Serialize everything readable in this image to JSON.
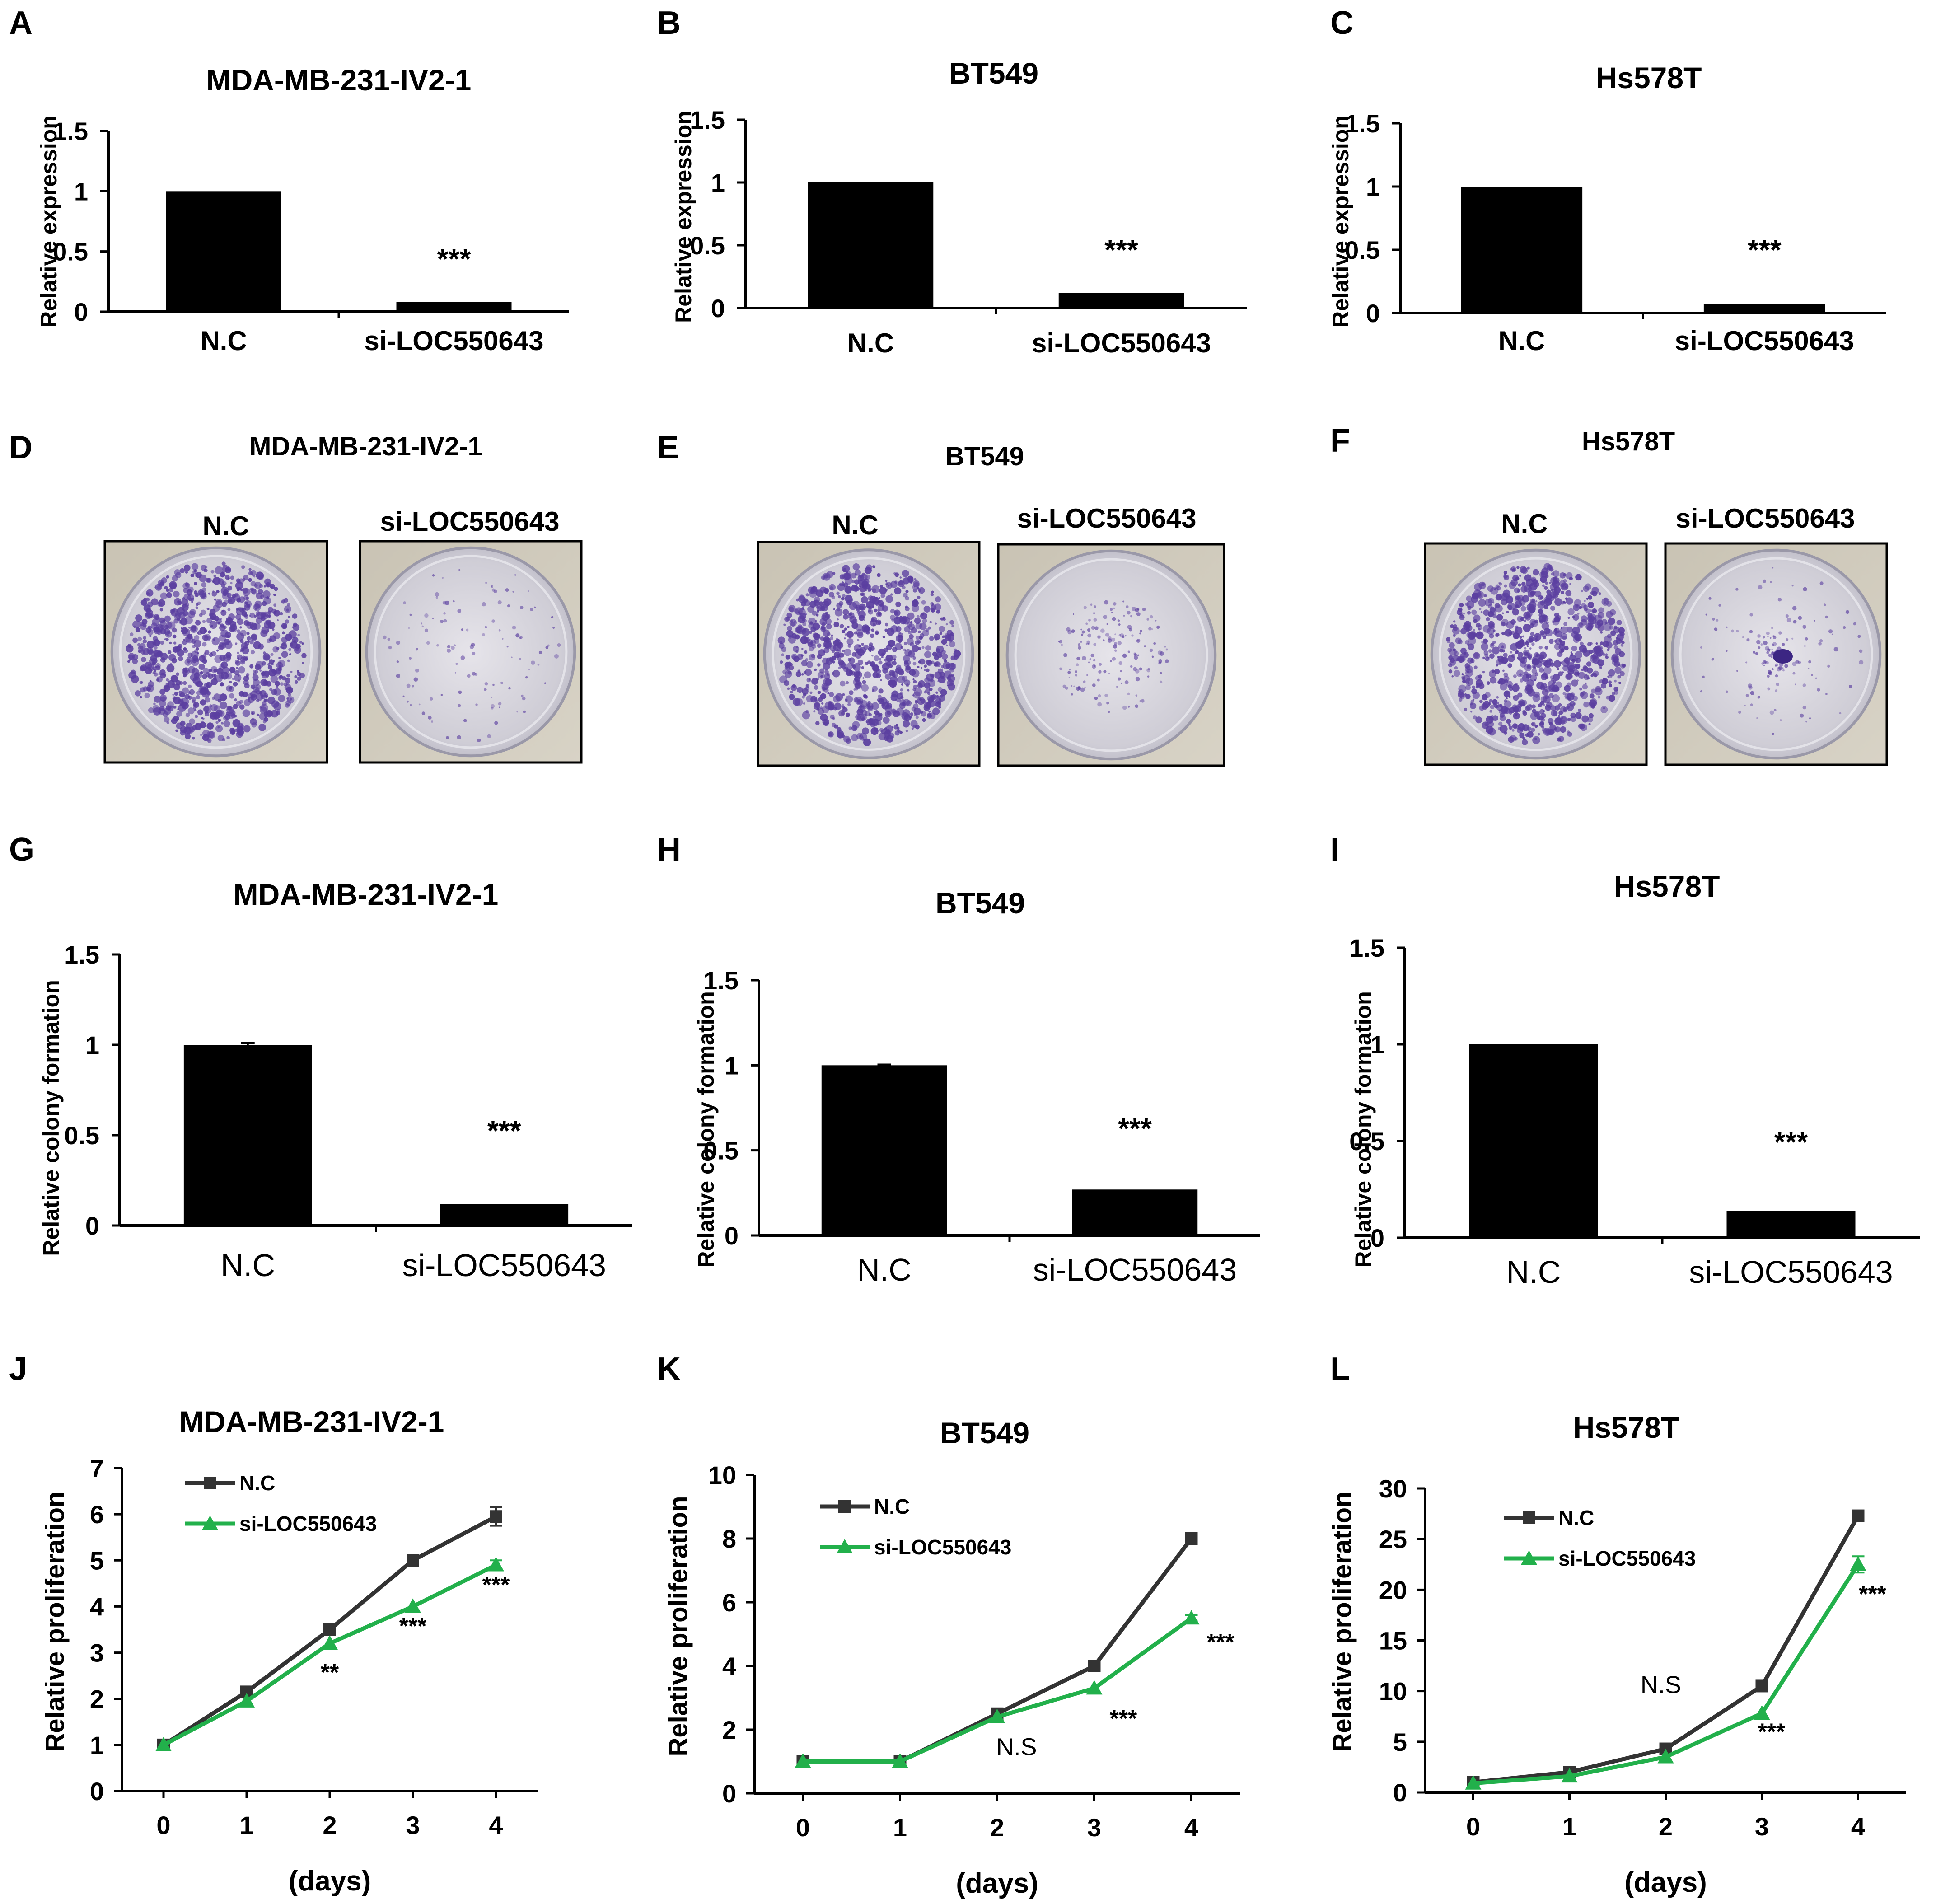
{
  "panels": {
    "letters": [
      "A",
      "B",
      "C",
      "D",
      "E",
      "F",
      "G",
      "H",
      "I",
      "J",
      "K",
      "L"
    ]
  },
  "colony_images": [
    {
      "letter": "D",
      "title": "MDA-MB-231-IV2-1",
      "plates": [
        {
          "label": "N.C",
          "stain": "dense"
        },
        {
          "label": "si-LOC550643",
          "stain": "sparse"
        }
      ]
    },
    {
      "letter": "E",
      "title": "BT549",
      "plates": [
        {
          "label": "N.C",
          "stain": "dense"
        },
        {
          "label": "si-LOC550643",
          "stain": "faint"
        }
      ]
    },
    {
      "letter": "F",
      "title": "Hs578T",
      "plates": [
        {
          "label": "N.C",
          "stain": "dense"
        },
        {
          "label": "si-LOC550643",
          "stain": "center"
        }
      ]
    }
  ],
  "chart_data": [
    {
      "letter": "A",
      "type": "bar",
      "title": "MDA-MB-231-IV2-1",
      "categories": [
        "N.C",
        "si-LOC550643"
      ],
      "values": [
        1.0,
        0.08
      ],
      "ylabel": "Relative expression",
      "xlabel": "",
      "ylim": [
        0,
        1.5
      ],
      "yticks": [
        "0",
        "0.5",
        "1",
        "1.5"
      ],
      "annotations": [
        {
          "category": "si-LOC550643",
          "text": "***"
        }
      ]
    },
    {
      "letter": "B",
      "type": "bar",
      "title": "BT549",
      "categories": [
        "N.C",
        "si-LOC550643"
      ],
      "values": [
        1.0,
        0.12
      ],
      "ylabel": "Relative expression",
      "xlabel": "",
      "ylim": [
        0,
        1.5
      ],
      "yticks": [
        "0",
        "0.5",
        "1",
        "1.5"
      ],
      "annotations": [
        {
          "category": "si-LOC550643",
          "text": "***"
        }
      ]
    },
    {
      "letter": "C",
      "type": "bar",
      "title": "Hs578T",
      "categories": [
        "N.C",
        "si-LOC550643"
      ],
      "values": [
        1.0,
        0.07
      ],
      "ylabel": "Relative expression",
      "xlabel": "",
      "ylim": [
        0,
        1.5
      ],
      "yticks": [
        "0",
        "0.5",
        "1",
        "1.5"
      ],
      "annotations": [
        {
          "category": "si-LOC550643",
          "text": "***"
        }
      ]
    },
    {
      "letter": "G",
      "type": "bar",
      "title": "MDA-MB-231-IV2-1",
      "categories": [
        "N.C",
        "si-LOC550643"
      ],
      "values": [
        1.0,
        0.12
      ],
      "errors": [
        0.01,
        0.0
      ],
      "ylabel": "Relative colony formation",
      "xlabel": "",
      "ylim": [
        0,
        1.5
      ],
      "yticks": [
        "0",
        "0.5",
        "1",
        "1.5"
      ],
      "annotations": [
        {
          "category": "si-LOC550643",
          "text": "***"
        }
      ]
    },
    {
      "letter": "H",
      "type": "bar",
      "title": "BT549",
      "categories": [
        "N.C",
        "si-LOC550643"
      ],
      "values": [
        1.0,
        0.27
      ],
      "errors": [
        0.005,
        0.0
      ],
      "ylabel": "Relative colony formation",
      "xlabel": "",
      "ylim": [
        0,
        1.5
      ],
      "yticks": [
        "0",
        "0.5",
        "1",
        "1.5"
      ],
      "annotations": [
        {
          "category": "si-LOC550643",
          "text": "***"
        }
      ]
    },
    {
      "letter": "I",
      "type": "bar",
      "title": "Hs578T",
      "categories": [
        "N.C",
        "si-LOC550643"
      ],
      "values": [
        1.0,
        0.14
      ],
      "ylabel": "Relative colony formation",
      "xlabel": "",
      "ylim": [
        0,
        1.5
      ],
      "yticks": [
        "0",
        "0.5",
        "1",
        "1.5"
      ],
      "annotations": [
        {
          "category": "si-LOC550643",
          "text": "***"
        }
      ]
    },
    {
      "letter": "J",
      "type": "line",
      "title": "MDA-MB-231-IV2-1",
      "x": [
        0,
        1,
        2,
        3,
        4
      ],
      "series": [
        {
          "name": "N.C",
          "color": "#333333",
          "marker": "square",
          "values": [
            1.0,
            2.15,
            3.5,
            5.0,
            5.95
          ],
          "errors": [
            0,
            0,
            0,
            0,
            0.2
          ]
        },
        {
          "name": "si-LOC550643",
          "color": "#22b04b",
          "marker": "triangle",
          "values": [
            1.0,
            1.95,
            3.2,
            4.0,
            4.9
          ],
          "errors": [
            0,
            0,
            0,
            0,
            0.1
          ]
        }
      ],
      "xlabel": "(days)",
      "ylabel": "Relative proliferation",
      "ylim": [
        0,
        7
      ],
      "yticks": [
        "0",
        "1",
        "2",
        "3",
        "4",
        "5",
        "6",
        "7"
      ],
      "xticks": [
        "0",
        "1",
        "2",
        "3",
        "4"
      ],
      "annotations": [
        {
          "x": 2,
          "y": 2.4,
          "text": "**"
        },
        {
          "x": 3,
          "y": 3.4,
          "text": "***"
        },
        {
          "x": 4,
          "y": 4.3,
          "text": "***"
        }
      ]
    },
    {
      "letter": "K",
      "type": "line",
      "title": "BT549",
      "x": [
        0,
        1,
        2,
        3,
        4
      ],
      "series": [
        {
          "name": "N.C",
          "color": "#333333",
          "marker": "square",
          "values": [
            1.0,
            1.0,
            2.5,
            4.0,
            8.0
          ],
          "errors": [
            0,
            0,
            0,
            0,
            0.15
          ]
        },
        {
          "name": "si-LOC550643",
          "color": "#22b04b",
          "marker": "triangle",
          "values": [
            1.0,
            1.0,
            2.4,
            3.3,
            5.5
          ],
          "errors": [
            0,
            0,
            0,
            0,
            0.1
          ]
        }
      ],
      "xlabel": "(days)",
      "ylabel": "Relative proliferation",
      "ylim": [
        0,
        10
      ],
      "yticks": [
        "0",
        "2",
        "4",
        "6",
        "8",
        "10"
      ],
      "xticks": [
        "0",
        "1",
        "2",
        "3",
        "4"
      ],
      "annotations": [
        {
          "x": 2.2,
          "y": 1.2,
          "text": "N.S"
        },
        {
          "x": 3.3,
          "y": 2.1,
          "text": "***"
        },
        {
          "x": 4.3,
          "y": 4.5,
          "text": "***"
        }
      ]
    },
    {
      "letter": "L",
      "type": "line",
      "title": "Hs578T",
      "x": [
        0,
        1,
        2,
        3,
        4
      ],
      "series": [
        {
          "name": "N.C",
          "color": "#333333",
          "marker": "square",
          "values": [
            1.0,
            2.0,
            4.3,
            10.5,
            27.3
          ],
          "errors": [
            0,
            0,
            0,
            0,
            0.3
          ]
        },
        {
          "name": "si-LOC550643",
          "color": "#22b04b",
          "marker": "triangle",
          "values": [
            0.9,
            1.6,
            3.5,
            7.8,
            22.5
          ],
          "errors": [
            0,
            0,
            0,
            0,
            0.8
          ]
        }
      ],
      "xlabel": "(days)",
      "ylabel": "Relative proliferation",
      "ylim": [
        0,
        30
      ],
      "yticks": [
        "0",
        "5",
        "10",
        "15",
        "20",
        "25",
        "30"
      ],
      "xticks": [
        "0",
        "1",
        "2",
        "3",
        "4"
      ],
      "annotations": [
        {
          "x": 1.95,
          "y": 9.8,
          "text": "N.S"
        },
        {
          "x": 3.1,
          "y": 5.2,
          "text": "***"
        },
        {
          "x": 4.15,
          "y": 18.8,
          "text": "***"
        }
      ]
    }
  ]
}
